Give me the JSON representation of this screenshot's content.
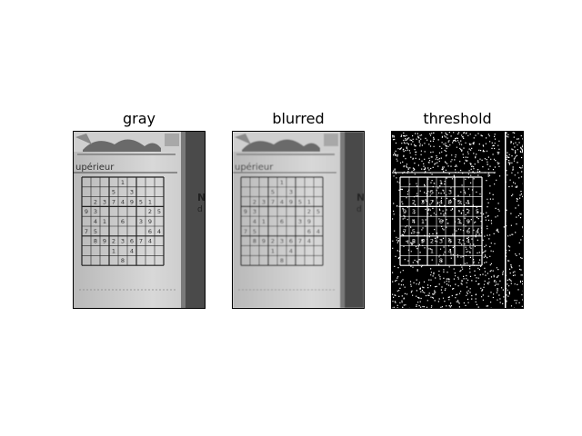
{
  "panels": [
    {
      "title": "gray",
      "mode": "gray"
    },
    {
      "title": "blurred",
      "mode": "blur"
    },
    {
      "title": "threshold",
      "mode": "thresh"
    }
  ],
  "header_word": "upérieur",
  "sudoku": [
    [
      "",
      "",
      "",
      "",
      "1",
      "",
      "",
      "",
      ""
    ],
    [
      "",
      "",
      "",
      "5",
      "",
      "3",
      "",
      "",
      ""
    ],
    [
      "",
      "2",
      "3",
      "7",
      "4",
      "9",
      "5",
      "1",
      ""
    ],
    [
      "9",
      "3",
      "",
      "",
      "",
      "",
      "",
      "2",
      "5"
    ],
    [
      "",
      "4",
      "1",
      "",
      "6",
      "",
      "3",
      "9",
      ""
    ],
    [
      "7",
      "5",
      "",
      "",
      "",
      "",
      "",
      "6",
      "4"
    ],
    [
      "",
      "8",
      "9",
      "2",
      "3",
      "6",
      "7",
      "4",
      ""
    ],
    [
      "",
      "",
      "",
      "1",
      "",
      "4",
      "",
      "",
      ""
    ],
    [
      "",
      "",
      "",
      "",
      "8",
      "",
      "",
      "",
      ""
    ]
  ],
  "side_text": [
    "N",
    "d"
  ]
}
